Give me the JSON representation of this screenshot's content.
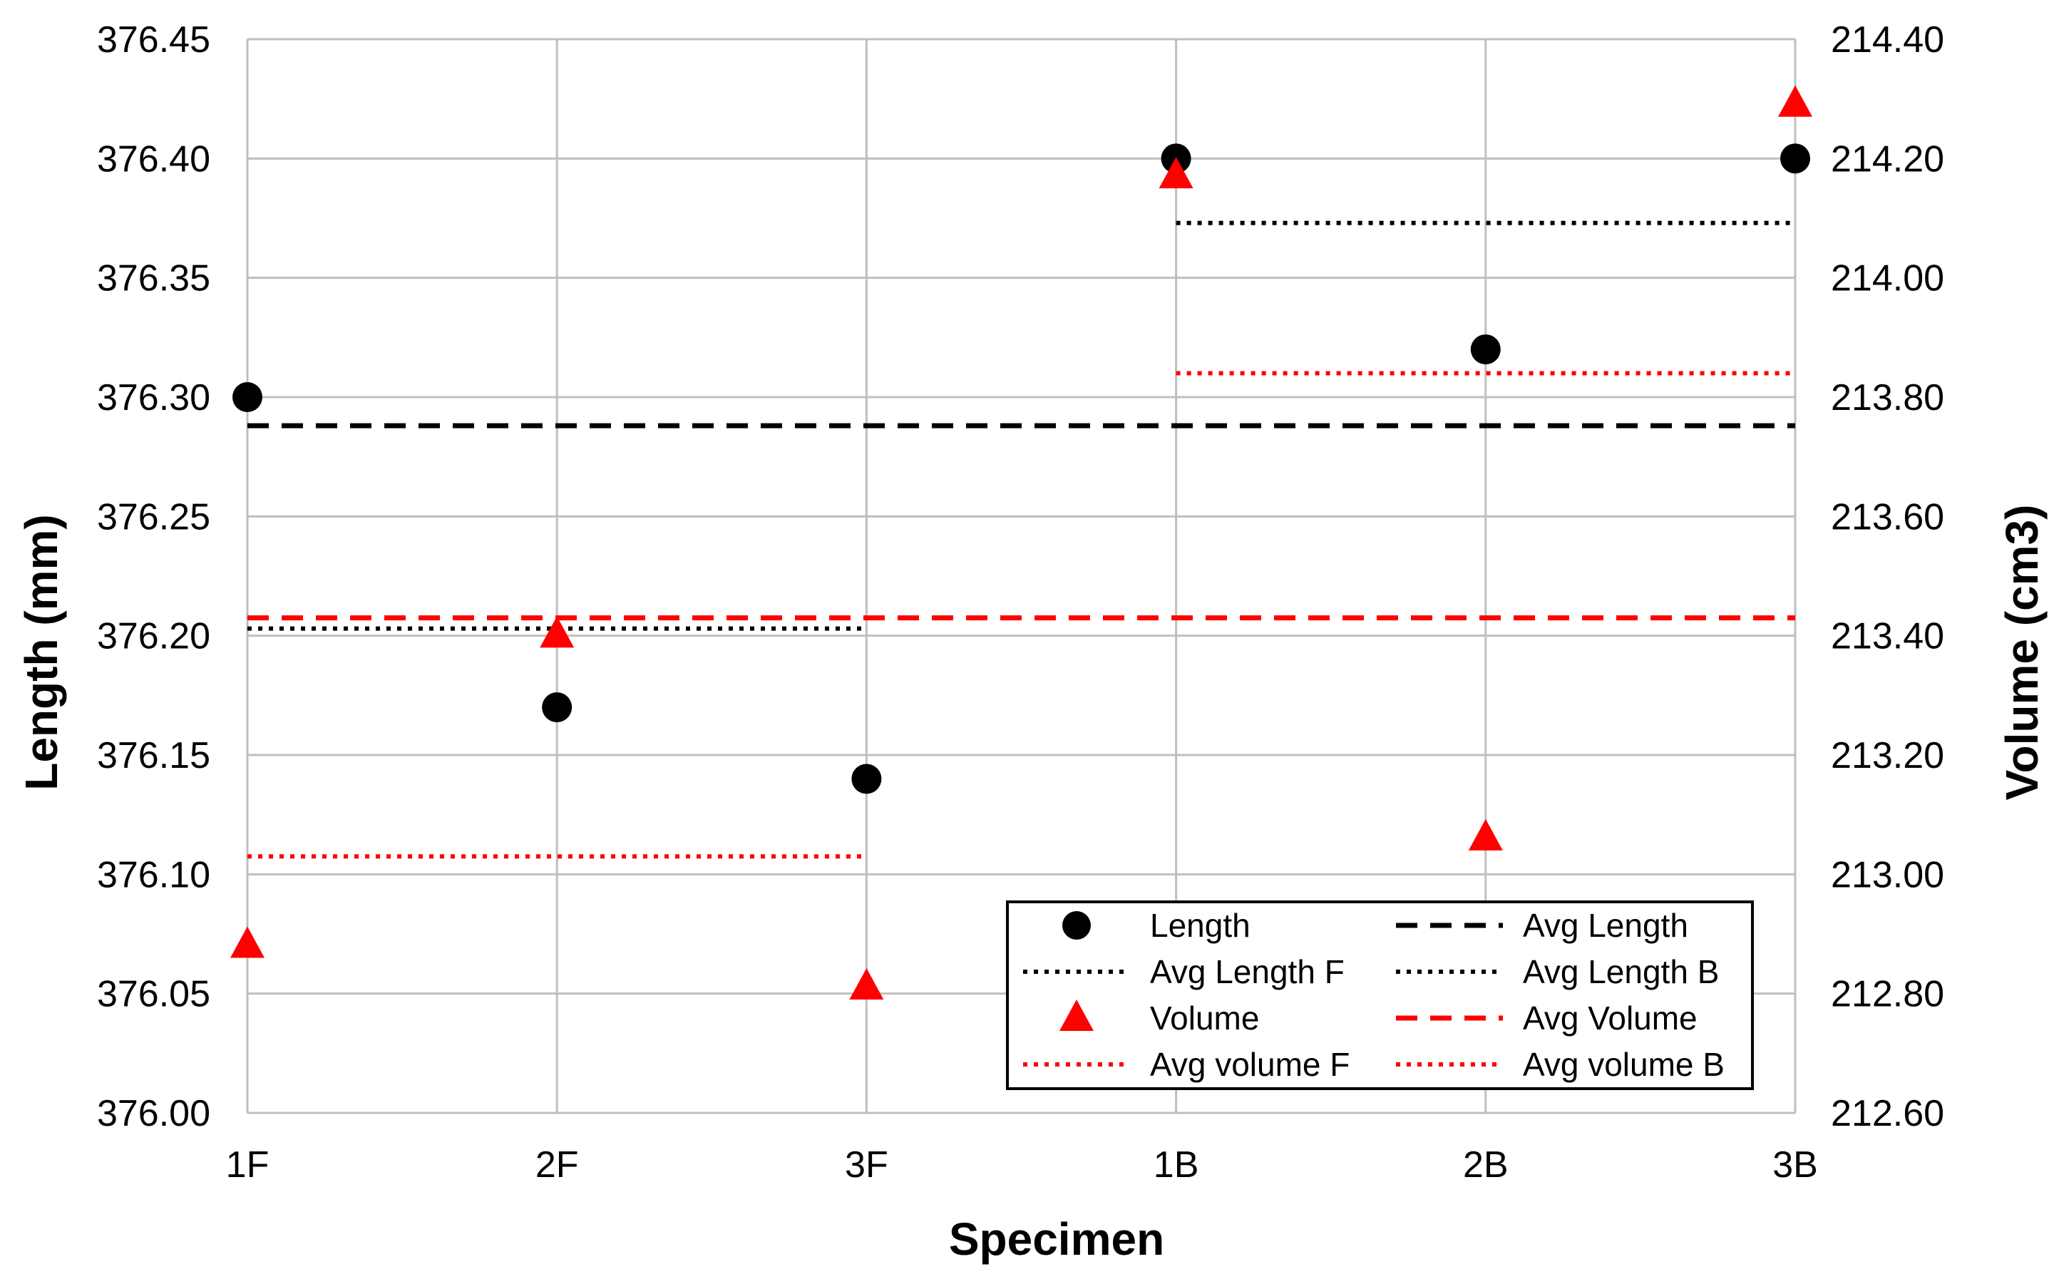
{
  "chart_data": {
    "type": "scatter",
    "title": "",
    "categories": [
      "1F",
      "2F",
      "3F",
      "1B",
      "2B",
      "3B"
    ],
    "xlabel": "Specimen",
    "ylabel": "Length (mm)",
    "y2label": "Volume (cm3)",
    "ylim": [
      376.0,
      376.45
    ],
    "y2lim": [
      212.6,
      214.4
    ],
    "yticks": [
      "376.00",
      "376.05",
      "376.10",
      "376.15",
      "376.20",
      "376.25",
      "376.30",
      "376.35",
      "376.40",
      "376.45"
    ],
    "y2ticks": [
      "212.60",
      "212.80",
      "213.00",
      "213.20",
      "213.40",
      "213.60",
      "213.80",
      "214.00",
      "214.20",
      "214.40"
    ],
    "grid": true,
    "legend_position": "bottom-right",
    "series": [
      {
        "name": "Length",
        "axis": "left",
        "marker": "circle",
        "color": "#000000",
        "values": [
          376.3,
          376.17,
          376.14,
          376.4,
          376.32,
          376.4
        ]
      },
      {
        "name": "Volume",
        "axis": "right",
        "marker": "triangle",
        "color": "#ff0000",
        "values": [
          212.88,
          213.4,
          212.81,
          214.17,
          213.06,
          214.29
        ]
      }
    ],
    "lines": [
      {
        "name": "Avg Length",
        "axis": "left",
        "style": "dashed",
        "color": "#000000",
        "value": 376.288,
        "from": 0,
        "to": 5
      },
      {
        "name": "Avg Length F",
        "axis": "left",
        "style": "dotted",
        "color": "#000000",
        "value": 376.203,
        "from": 0,
        "to": 2
      },
      {
        "name": "Avg Length B",
        "axis": "left",
        "style": "dotted",
        "color": "#000000",
        "value": 376.373,
        "from": 3,
        "to": 5
      },
      {
        "name": "Avg Volume",
        "axis": "right",
        "style": "dashed",
        "color": "#ff0000",
        "value": 213.43,
        "from": 0,
        "to": 5
      },
      {
        "name": "Avg volume F",
        "axis": "right",
        "style": "dotted",
        "color": "#ff0000",
        "value": 213.03,
        "from": 0,
        "to": 2
      },
      {
        "name": "Avg volume B",
        "axis": "right",
        "style": "dotted",
        "color": "#ff0000",
        "value": 213.84,
        "from": 3,
        "to": 5
      }
    ],
    "legend": [
      {
        "label": "Length",
        "kind": "circle",
        "color": "#000000"
      },
      {
        "label": "Avg Length",
        "kind": "dashed",
        "color": "#000000"
      },
      {
        "label": "Avg Length F",
        "kind": "dotted",
        "color": "#000000"
      },
      {
        "label": "Avg Length B",
        "kind": "dotted",
        "color": "#000000"
      },
      {
        "label": "Volume",
        "kind": "triangle",
        "color": "#ff0000"
      },
      {
        "label": "Avg Volume",
        "kind": "dashed",
        "color": "#ff0000"
      },
      {
        "label": "Avg volume F",
        "kind": "dotted",
        "color": "#ff0000"
      },
      {
        "label": "Avg volume B",
        "kind": "dotted",
        "color": "#ff0000"
      }
    ]
  }
}
